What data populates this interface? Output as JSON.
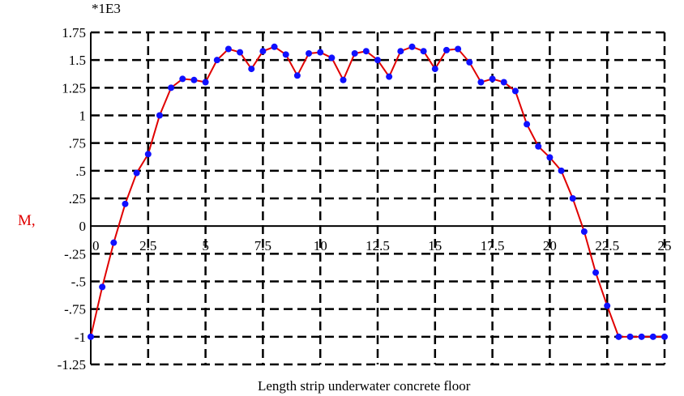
{
  "chart_data": {
    "type": "line",
    "title": "",
    "xlabel": "Length strip underwater concrete floor",
    "ylabel": "M,",
    "y_multiplier_label": "*1E3",
    "xlim": [
      0,
      25
    ],
    "ylim": [
      -1.25,
      1.75
    ],
    "grid": true,
    "legend": "none",
    "x_tick_labels": [
      "0",
      "2.5",
      "5",
      "7.5",
      "10",
      "12.5",
      "15",
      "17.5",
      "20",
      "22.5",
      "25"
    ],
    "x_tick_values": [
      0,
      2.5,
      5,
      7.5,
      10,
      12.5,
      15,
      17.5,
      20,
      22.5,
      25
    ],
    "y_tick_labels": [
      "1.75",
      "1.5",
      "1.25",
      "1",
      ".75",
      ".5",
      ".25",
      "0",
      "-.25",
      "-.5",
      "-.75",
      "-1",
      "-1.25"
    ],
    "y_tick_values": [
      1.75,
      1.5,
      1.25,
      1,
      0.75,
      0.5,
      0.25,
      0,
      -0.25,
      -0.5,
      -0.75,
      -1,
      -1.25
    ],
    "colors": {
      "line": "#e00000",
      "markers": "#1010ff",
      "grid": "#000000",
      "ylabel": "#e00000"
    },
    "series": [
      {
        "x": [
          0,
          0.5,
          1,
          1.5,
          2,
          2.5,
          3,
          3.5,
          4,
          4.5,
          5,
          5.5,
          6,
          6.5,
          7,
          7.5,
          8,
          8.5,
          9,
          9.5,
          10,
          10.5,
          11,
          11.5,
          12,
          12.5,
          13,
          13.5,
          14,
          14.5,
          15,
          15.5,
          16,
          16.5,
          17,
          17.5,
          18,
          18.5,
          19,
          19.5,
          20,
          20.5,
          21,
          21.5,
          22,
          22.5,
          23,
          23.5,
          24,
          24.5,
          25
        ],
        "y": [
          -1.0,
          -0.55,
          -0.15,
          0.2,
          0.48,
          0.65,
          1.0,
          1.25,
          1.33,
          1.32,
          1.3,
          1.5,
          1.6,
          1.57,
          1.42,
          1.58,
          1.62,
          1.55,
          1.36,
          1.56,
          1.57,
          1.52,
          1.32,
          1.56,
          1.58,
          1.5,
          1.35,
          1.58,
          1.62,
          1.58,
          1.42,
          1.59,
          1.6,
          1.48,
          1.3,
          1.33,
          1.3,
          1.22,
          0.92,
          0.72,
          0.62,
          0.5,
          0.25,
          -0.05,
          -0.42,
          -0.72,
          -1.0,
          -1.0,
          -1.0,
          -1.0,
          -1.0
        ]
      }
    ]
  }
}
